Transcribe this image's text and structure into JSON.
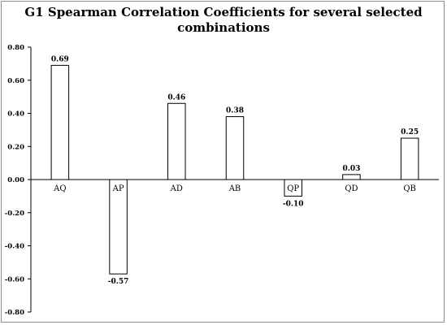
{
  "chart_data": {
    "type": "bar",
    "title_line1": "G1 Spearman Correlation Coefficients for several selected",
    "title_line2": "combinations",
    "categories": [
      "AQ",
      "AP",
      "AD",
      "AB",
      "QP",
      "QD",
      "QB"
    ],
    "values": [
      0.69,
      -0.57,
      0.46,
      0.38,
      -0.1,
      0.03,
      0.25
    ],
    "value_labels": [
      "0.69",
      "-0.57",
      "0.46",
      "0.38",
      "-0.10",
      "0.03",
      "0.25"
    ],
    "ylim": [
      -0.8,
      0.8
    ],
    "yticks": [
      0.8,
      0.6,
      0.4,
      0.2,
      0.0,
      -0.2,
      -0.4,
      -0.6,
      -0.8
    ],
    "ytick_labels": [
      "0.80",
      "0.60",
      "0.40",
      "0.20",
      "0.00",
      "-0.20",
      "-0.40",
      "-0.60",
      "-0.80"
    ],
    "grid": false,
    "bar_fill": "#ffffff",
    "bar_stroke": "#000000"
  }
}
